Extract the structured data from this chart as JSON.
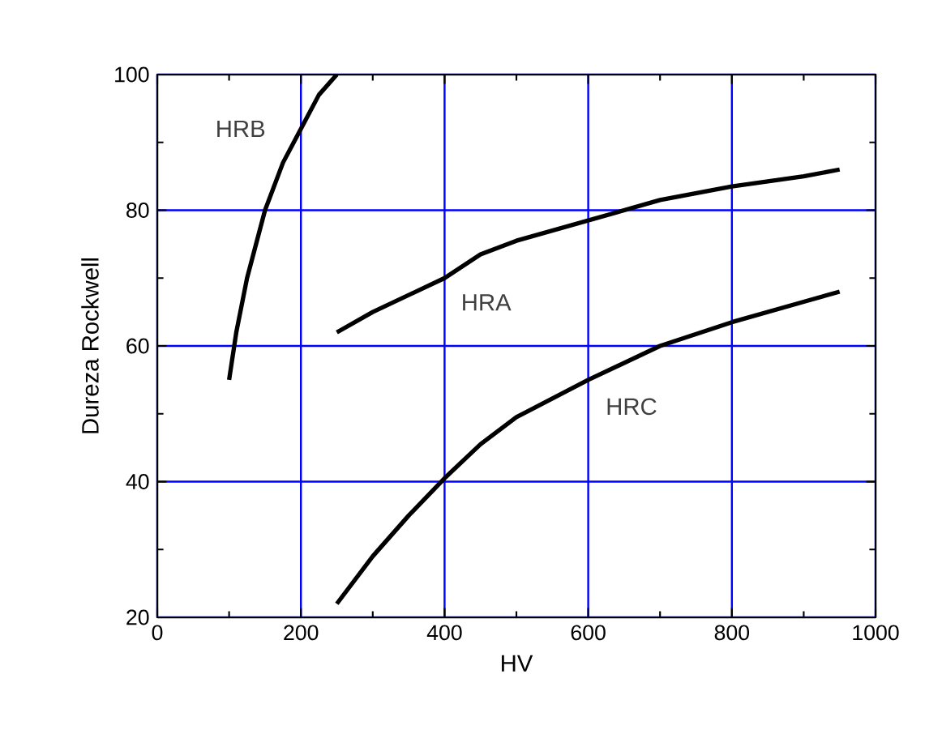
{
  "chart_data": {
    "type": "line",
    "xlabel": "HV",
    "ylabel": "Dureza Rockwell",
    "xlim": [
      0,
      1000
    ],
    "ylim": [
      20,
      100
    ],
    "xticks": [
      0,
      200,
      400,
      600,
      800,
      1000
    ],
    "yticks": [
      20,
      40,
      60,
      80,
      100
    ],
    "grid": true,
    "marker": "none",
    "line_style": "solid",
    "series": [
      {
        "name": "HRB",
        "color": "#000000",
        "x": [
          100,
          110,
          125,
          150,
          175,
          200,
          225,
          250
        ],
        "values": [
          55,
          62,
          70,
          80,
          87,
          92,
          97,
          100
        ]
      },
      {
        "name": "HRA",
        "color": "#000000",
        "x": [
          250,
          300,
          400,
          450,
          500,
          600,
          700,
          800,
          900,
          950
        ],
        "values": [
          62,
          65,
          70,
          73.5,
          75.5,
          78.5,
          81.5,
          83.5,
          85,
          86
        ]
      },
      {
        "name": "HRC",
        "color": "#000000",
        "x": [
          250,
          300,
          350,
          400,
          450,
          500,
          600,
          700,
          800,
          900,
          950
        ],
        "values": [
          22,
          29,
          35,
          40.5,
          45.5,
          49.5,
          55,
          60,
          63.5,
          66.5,
          68
        ]
      }
    ]
  }
}
